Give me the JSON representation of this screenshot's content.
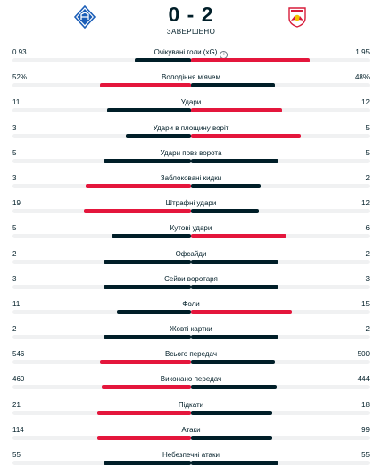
{
  "match": {
    "home_logo_icon": "dynamo-kyiv-crest-icon",
    "away_logo_icon": "red-bull-salzburg-crest-icon",
    "score": "0 - 2",
    "status": "ЗАВЕРШЕНО"
  },
  "colors": {
    "dark": "#001e28",
    "red": "#e4163c",
    "track": "#f0f1f2"
  },
  "stats": [
    {
      "label": "Очікувані голи (xG)",
      "home": "0.93",
      "away": "1.95",
      "info": true,
      "home_share": 0.32,
      "away_share": 0.68,
      "leader": "away"
    },
    {
      "label": "Володіння м'ячем",
      "home": "52%",
      "away": "48%",
      "home_share": 0.52,
      "away_share": 0.48,
      "leader": "home"
    },
    {
      "label": "Удари",
      "home": "11",
      "away": "12",
      "home_share": 0.478,
      "away_share": 0.522,
      "leader": "away"
    },
    {
      "label": "Удари в площину воріт",
      "home": "3",
      "away": "5",
      "home_share": 0.375,
      "away_share": 0.625,
      "leader": "away"
    },
    {
      "label": "Удари повз ворота",
      "home": "5",
      "away": "5",
      "home_share": 0.5,
      "away_share": 0.5,
      "leader": "none"
    },
    {
      "label": "Заблоковані кидки",
      "home": "3",
      "away": "2",
      "home_share": 0.6,
      "away_share": 0.4,
      "leader": "home"
    },
    {
      "label": "Штрафні удари",
      "home": "19",
      "away": "12",
      "home_share": 0.613,
      "away_share": 0.387,
      "leader": "home"
    },
    {
      "label": "Кутові удари",
      "home": "5",
      "away": "6",
      "home_share": 0.455,
      "away_share": 0.545,
      "leader": "away"
    },
    {
      "label": "Офсайди",
      "home": "2",
      "away": "2",
      "home_share": 0.5,
      "away_share": 0.5,
      "leader": "none"
    },
    {
      "label": "Сейви воротаря",
      "home": "3",
      "away": "3",
      "home_share": 0.5,
      "away_share": 0.5,
      "leader": "none"
    },
    {
      "label": "Фоли",
      "home": "11",
      "away": "15",
      "home_share": 0.423,
      "away_share": 0.577,
      "leader": "away"
    },
    {
      "label": "Жовті картки",
      "home": "2",
      "away": "2",
      "home_share": 0.5,
      "away_share": 0.5,
      "leader": "none"
    },
    {
      "label": "Всього передач",
      "home": "546",
      "away": "500",
      "home_share": 0.522,
      "away_share": 0.478,
      "leader": "home"
    },
    {
      "label": "Виконано передач",
      "home": "460",
      "away": "444",
      "home_share": 0.509,
      "away_share": 0.491,
      "leader": "home"
    },
    {
      "label": "Підкати",
      "home": "21",
      "away": "18",
      "home_share": 0.538,
      "away_share": 0.462,
      "leader": "home"
    },
    {
      "label": "Атаки",
      "home": "114",
      "away": "99",
      "home_share": 0.535,
      "away_share": 0.465,
      "leader": "home"
    },
    {
      "label": "Небезпечні атаки",
      "home": "55",
      "away": "55",
      "home_share": 0.5,
      "away_share": 0.5,
      "leader": "none"
    }
  ]
}
